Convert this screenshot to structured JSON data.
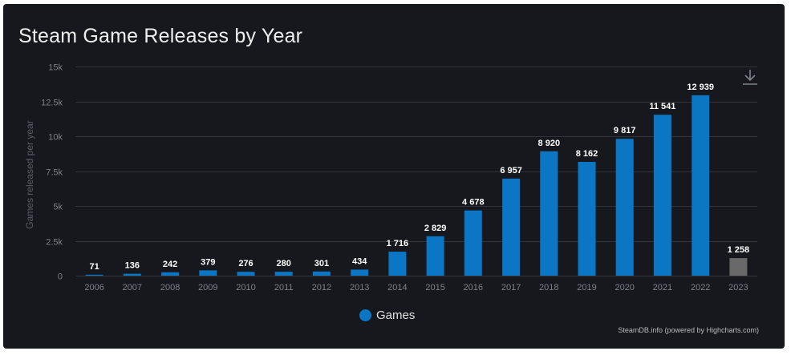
{
  "chart_data": {
    "type": "bar",
    "title": "Steam Game Releases by Year",
    "xlabel": "",
    "ylabel": "Games released per year",
    "categories": [
      "2006",
      "2007",
      "2008",
      "2009",
      "2010",
      "2011",
      "2012",
      "2013",
      "2014",
      "2015",
      "2016",
      "2017",
      "2018",
      "2019",
      "2020",
      "2021",
      "2022",
      "2023"
    ],
    "values": [
      71,
      136,
      242,
      379,
      276,
      280,
      301,
      434,
      1716,
      2829,
      4678,
      6957,
      8920,
      8162,
      9817,
      11541,
      12939,
      1258
    ],
    "data_labels": [
      "71",
      "136",
      "242",
      "379",
      "276",
      "280",
      "301",
      "434",
      "1 716",
      "2 829",
      "4 678",
      "6 957",
      "8 920",
      "8 162",
      "9 817",
      "11 541",
      "12 939",
      "1 258"
    ],
    "series": [
      {
        "name": "Games",
        "values": [
          71,
          136,
          242,
          379,
          276,
          280,
          301,
          434,
          1716,
          2829,
          4678,
          6957,
          8920,
          8162,
          9817,
          11541,
          12939,
          1258
        ]
      }
    ],
    "ylim": [
      0,
      15000
    ],
    "yticks": [
      0,
      2500,
      5000,
      7500,
      10000,
      12500,
      15000
    ],
    "ytick_labels": [
      "0",
      "2.5k",
      "5k",
      "7.5k",
      "10k",
      "12.5k",
      "15k"
    ],
    "grid": true,
    "legend": "bottom-center",
    "colors": {
      "bar": "#0a76c4",
      "bar_partial_year": "#696969"
    },
    "highlighted_partial_category": "2023"
  },
  "credits": "SteamDB.info (powered by Highcharts.com)",
  "icons": {
    "download": "download-icon"
  },
  "theme": {
    "background": "#16181d",
    "grid": "#30343b",
    "axis_text": "#7d828a"
  }
}
